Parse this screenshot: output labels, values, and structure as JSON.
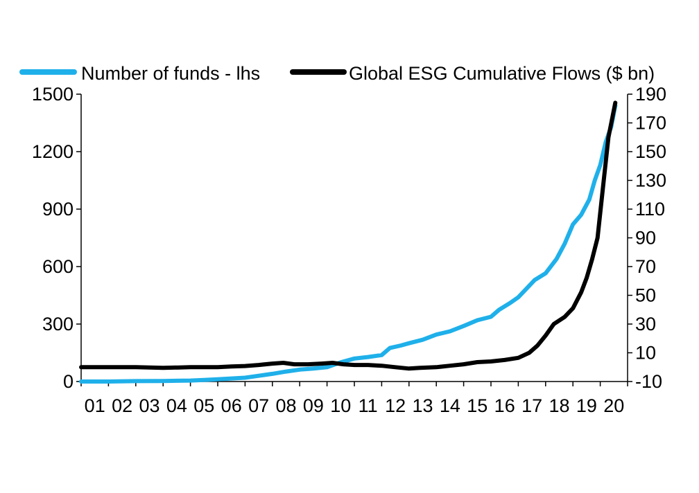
{
  "chart_data": {
    "type": "line",
    "title": "",
    "xlabel": "",
    "ylabel_left": "",
    "ylabel_right": "",
    "x_tick_labels": [
      "01",
      "02",
      "03",
      "04",
      "05",
      "06",
      "07",
      "08",
      "09",
      "10",
      "11",
      "12",
      "13",
      "14",
      "15",
      "16",
      "17",
      "18",
      "19",
      "20"
    ],
    "x_range": [
      2001.0,
      2021.0
    ],
    "y_left": {
      "range": [
        0,
        1500
      ],
      "ticks": [
        0,
        300,
        600,
        900,
        1200,
        1500
      ]
    },
    "y_right": {
      "range": [
        -10,
        190
      ],
      "ticks": [
        -10,
        10,
        30,
        50,
        70,
        90,
        110,
        130,
        150,
        170,
        190
      ]
    },
    "legend": {
      "placement": "top"
    },
    "grid": false,
    "series": [
      {
        "name": "Number of funds - lhs",
        "axis": "left",
        "color": "#1fb0ea",
        "points": [
          [
            2001.0,
            0
          ],
          [
            2002.0,
            0
          ],
          [
            2003.0,
            2
          ],
          [
            2004.0,
            3
          ],
          [
            2005.0,
            5
          ],
          [
            2005.5,
            8
          ],
          [
            2006.0,
            12
          ],
          [
            2006.5,
            16
          ],
          [
            2007.0,
            20
          ],
          [
            2007.5,
            30
          ],
          [
            2008.0,
            40
          ],
          [
            2008.5,
            52
          ],
          [
            2009.0,
            62
          ],
          [
            2009.5,
            68
          ],
          [
            2010.0,
            75
          ],
          [
            2010.5,
            100
          ],
          [
            2011.0,
            120
          ],
          [
            2011.5,
            128
          ],
          [
            2012.0,
            138
          ],
          [
            2012.3,
            175
          ],
          [
            2012.7,
            188
          ],
          [
            2013.0,
            200
          ],
          [
            2013.5,
            218
          ],
          [
            2014.0,
            245
          ],
          [
            2014.5,
            262
          ],
          [
            2015.0,
            290
          ],
          [
            2015.5,
            320
          ],
          [
            2016.0,
            338
          ],
          [
            2016.3,
            375
          ],
          [
            2016.7,
            410
          ],
          [
            2017.0,
            440
          ],
          [
            2017.4,
            500
          ],
          [
            2017.6,
            530
          ],
          [
            2018.0,
            565
          ],
          [
            2018.4,
            640
          ],
          [
            2018.7,
            720
          ],
          [
            2019.0,
            820
          ],
          [
            2019.3,
            870
          ],
          [
            2019.6,
            950
          ],
          [
            2019.8,
            1050
          ],
          [
            2020.0,
            1130
          ],
          [
            2020.2,
            1250
          ],
          [
            2020.4,
            1330
          ],
          [
            2020.55,
            1440
          ]
        ]
      },
      {
        "name": "Global ESG Cumulative Flows ($ bn)",
        "axis": "right",
        "color": "#000000",
        "points": [
          [
            2001.0,
            0
          ],
          [
            2002.0,
            0
          ],
          [
            2003.0,
            0
          ],
          [
            2004.0,
            -0.5
          ],
          [
            2005.0,
            0
          ],
          [
            2006.0,
            0
          ],
          [
            2006.5,
            0.5
          ],
          [
            2007.0,
            0.8
          ],
          [
            2007.5,
            1.5
          ],
          [
            2008.0,
            2.5
          ],
          [
            2008.4,
            3
          ],
          [
            2008.8,
            2
          ],
          [
            2009.3,
            2
          ],
          [
            2009.8,
            2.5
          ],
          [
            2010.2,
            3
          ],
          [
            2010.6,
            2
          ],
          [
            2011.0,
            1.5
          ],
          [
            2011.5,
            1.5
          ],
          [
            2012.0,
            1
          ],
          [
            2012.5,
            0
          ],
          [
            2013.0,
            -1
          ],
          [
            2013.4,
            -0.5
          ],
          [
            2014.0,
            0
          ],
          [
            2014.5,
            1
          ],
          [
            2015.0,
            2
          ],
          [
            2015.5,
            3.5
          ],
          [
            2016.0,
            4
          ],
          [
            2016.5,
            5
          ],
          [
            2017.0,
            6.5
          ],
          [
            2017.4,
            10
          ],
          [
            2017.7,
            15
          ],
          [
            2018.0,
            22
          ],
          [
            2018.3,
            30
          ],
          [
            2018.7,
            35
          ],
          [
            2019.0,
            41
          ],
          [
            2019.3,
            52
          ],
          [
            2019.5,
            62
          ],
          [
            2019.7,
            75
          ],
          [
            2019.9,
            90
          ],
          [
            2020.1,
            125
          ],
          [
            2020.3,
            160
          ],
          [
            2020.55,
            184
          ]
        ]
      }
    ]
  }
}
